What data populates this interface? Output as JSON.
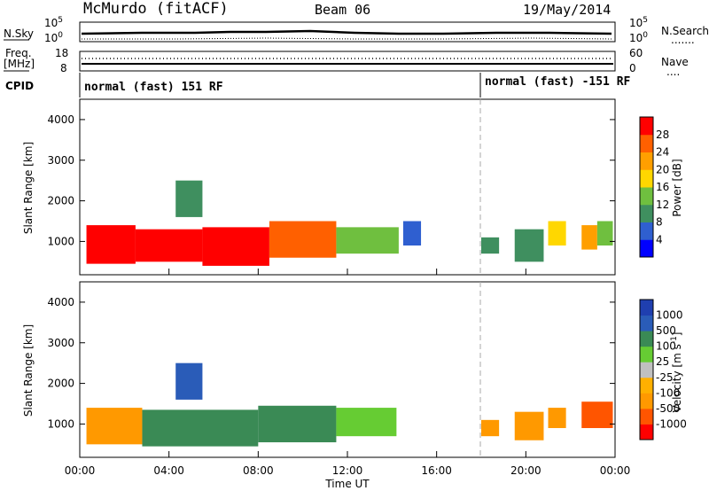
{
  "header": {
    "station": "McMurdo (fitACF)",
    "beam": "Beam 06",
    "date": "19/May/2014"
  },
  "sky_panel": {
    "left_label": "N.Sky",
    "right_label": "N.Search",
    "right_legend": ".......",
    "tick_top": "10^5",
    "tick_bottom": "10^0"
  },
  "freq_panel": {
    "left_label_1": "Freq.",
    "left_label_2": "[MHz]",
    "left_ticks": [
      "18",
      "8"
    ],
    "right_label": "Nave",
    "right_legend": "....",
    "right_ticks": [
      "60",
      "0"
    ]
  },
  "cpid": {
    "label": "CPID",
    "modes": [
      {
        "text": "normal (fast) 151 RF",
        "start_hour": 0
      },
      {
        "text": "normal (fast) -151 RF",
        "start_hour": 18
      }
    ]
  },
  "colors": {
    "power_scale": [
      "#0000ff",
      "#2f5fd0",
      "#3f8f5f",
      "#6fbf3f",
      "#ffd700",
      "#ff9f00",
      "#ff6000",
      "#ff0000"
    ],
    "velocity_scale": [
      "#ff0000",
      "#ff5500",
      "#ff9900",
      "#ffb000",
      "#c0c0c0",
      "#66cc33",
      "#3a8a55",
      "#2a5cb8",
      "#1f3fb0"
    ]
  },
  "chart_data": [
    {
      "type": "heatmap",
      "name": "power",
      "ylabel": "Slant Range [km]",
      "x_ticks": [
        "00:00",
        "04:00",
        "08:00",
        "12:00",
        "16:00",
        "20:00",
        "00:00"
      ],
      "y_ticks": [
        "1000",
        "2000",
        "3000",
        "4000"
      ],
      "y_tick_values": [
        1000,
        2000,
        3000,
        4000
      ],
      "xlim_hours": [
        0,
        24
      ],
      "ylim_km": [
        180,
        4500
      ],
      "colorbar_label": "Power [dB]",
      "colorbar_ticks": [
        "4",
        "8",
        "12",
        "16",
        "20",
        "24",
        "28"
      ],
      "regions": [
        {
          "t0": 0.3,
          "t1": 2.5,
          "r0": 450,
          "r1": 1400,
          "level": 7
        },
        {
          "t0": 2.5,
          "t1": 5.5,
          "r0": 500,
          "r1": 1300,
          "level": 7
        },
        {
          "t0": 5.5,
          "t1": 8.5,
          "r0": 400,
          "r1": 1350,
          "level": 7
        },
        {
          "t0": 8.5,
          "t1": 11.5,
          "r0": 600,
          "r1": 1500,
          "level": 6
        },
        {
          "t0": 11.5,
          "t1": 14.3,
          "r0": 700,
          "r1": 1350,
          "level": 3
        },
        {
          "t0": 4.3,
          "t1": 5.5,
          "r0": 1600,
          "r1": 2500,
          "level": 2
        },
        {
          "t0": 14.5,
          "t1": 15.3,
          "r0": 900,
          "r1": 1500,
          "level": 1
        },
        {
          "t0": 18.0,
          "t1": 18.8,
          "r0": 700,
          "r1": 1100,
          "level": 2
        },
        {
          "t0": 19.5,
          "t1": 20.8,
          "r0": 500,
          "r1": 1300,
          "level": 2
        },
        {
          "t0": 21.0,
          "t1": 21.8,
          "r0": 900,
          "r1": 1500,
          "level": 4
        },
        {
          "t0": 22.5,
          "t1": 23.2,
          "r0": 800,
          "r1": 1400,
          "level": 5
        },
        {
          "t0": 23.2,
          "t1": 23.9,
          "r0": 900,
          "r1": 1500,
          "level": 3
        }
      ]
    },
    {
      "type": "heatmap",
      "name": "velocity",
      "ylabel": "Slant Range [km]",
      "xlabel": "Time UT",
      "x_ticks": [
        "00:00",
        "04:00",
        "08:00",
        "12:00",
        "16:00",
        "20:00",
        "00:00"
      ],
      "y_ticks": [
        "1000",
        "2000",
        "3000",
        "4000"
      ],
      "y_tick_values": [
        1000,
        2000,
        3000,
        4000
      ],
      "xlim_hours": [
        0,
        24
      ],
      "ylim_km": [
        180,
        4500
      ],
      "colorbar_label": "Velocity [m s^-1]",
      "colorbar_ticks": [
        "1000",
        "500",
        "100",
        "25",
        "-25",
        "-100",
        "-500",
        "-1000"
      ],
      "regions": [
        {
          "t0": 0.3,
          "t1": 2.8,
          "r0": 500,
          "r1": 1400,
          "level": 2
        },
        {
          "t0": 2.8,
          "t1": 8.0,
          "r0": 450,
          "r1": 1350,
          "level": 6
        },
        {
          "t0": 8.0,
          "t1": 11.5,
          "r0": 550,
          "r1": 1450,
          "level": 6
        },
        {
          "t0": 11.5,
          "t1": 14.2,
          "r0": 700,
          "r1": 1400,
          "level": 5
        },
        {
          "t0": 4.3,
          "t1": 5.5,
          "r0": 1600,
          "r1": 2500,
          "level": 7
        },
        {
          "t0": 18.0,
          "t1": 18.8,
          "r0": 700,
          "r1": 1100,
          "level": 2
        },
        {
          "t0": 19.5,
          "t1": 20.8,
          "r0": 600,
          "r1": 1300,
          "level": 2
        },
        {
          "t0": 21.0,
          "t1": 21.8,
          "r0": 900,
          "r1": 1400,
          "level": 2
        },
        {
          "t0": 22.5,
          "t1": 23.9,
          "r0": 900,
          "r1": 1550,
          "level": 1
        }
      ]
    }
  ]
}
